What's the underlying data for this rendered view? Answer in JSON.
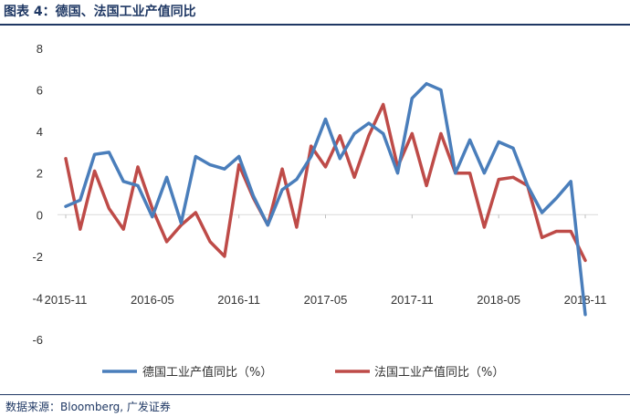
{
  "header": {
    "title": "图表 4：德国、法国工业产值同比"
  },
  "source": {
    "text": "数据来源：Bloomberg, 广发证券"
  },
  "colors": {
    "germany": "#4a7ebb",
    "france": "#be4b48",
    "title": "#1f3864"
  },
  "chart_data": {
    "type": "line",
    "title": "",
    "xlabel": "",
    "ylabel": "",
    "ylim": [
      -6,
      8
    ],
    "yticks": [
      -6,
      -4,
      -2,
      0,
      2,
      4,
      6,
      8
    ],
    "grid": false,
    "legend": "bottom",
    "x": [
      "2015-11",
      "2015-12",
      "2016-01",
      "2016-02",
      "2016-03",
      "2016-04",
      "2016-05",
      "2016-06",
      "2016-07",
      "2016-08",
      "2016-09",
      "2016-10",
      "2016-11",
      "2016-12",
      "2017-01",
      "2017-02",
      "2017-03",
      "2017-04",
      "2017-05",
      "2017-06",
      "2017-07",
      "2017-08",
      "2017-09",
      "2017-10",
      "2017-11",
      "2017-12",
      "2018-01",
      "2018-02",
      "2018-03",
      "2018-04",
      "2018-05",
      "2018-06",
      "2018-07",
      "2018-08",
      "2018-09",
      "2018-10",
      "2018-11"
    ],
    "xtick_labels": [
      "2015-11",
      "2016-05",
      "2016-11",
      "2017-05",
      "2017-11",
      "2018-05",
      "2018-11"
    ],
    "xtick_indices": [
      0,
      6,
      12,
      18,
      24,
      30,
      36
    ],
    "series": [
      {
        "name": "德国工业产值同比（%）",
        "color": "#4a7ebb",
        "values": [
          0.4,
          0.7,
          2.9,
          3.0,
          1.6,
          1.4,
          -0.1,
          1.8,
          -0.4,
          2.8,
          2.4,
          2.2,
          2.8,
          0.9,
          -0.5,
          1.2,
          1.7,
          2.8,
          4.6,
          2.7,
          3.9,
          4.4,
          3.9,
          2.0,
          5.6,
          6.3,
          6.0,
          2.0,
          3.6,
          2.0,
          3.5,
          3.2,
          1.4,
          0.1,
          0.8,
          1.6,
          -4.8
        ]
      },
      {
        "name": "法国工业产值同比（%）",
        "color": "#be4b48",
        "values": [
          2.7,
          -0.7,
          2.1,
          0.3,
          -0.7,
          2.3,
          0.3,
          -1.3,
          -0.5,
          0.1,
          -1.3,
          -2.0,
          2.4,
          0.8,
          -0.5,
          2.2,
          -0.6,
          3.3,
          2.3,
          3.8,
          1.8,
          3.8,
          5.3,
          2.3,
          3.9,
          1.4,
          3.9,
          2.0,
          2.0,
          -0.6,
          1.7,
          1.8,
          1.4,
          -1.1,
          -0.8,
          -0.8,
          -2.2
        ]
      }
    ]
  }
}
